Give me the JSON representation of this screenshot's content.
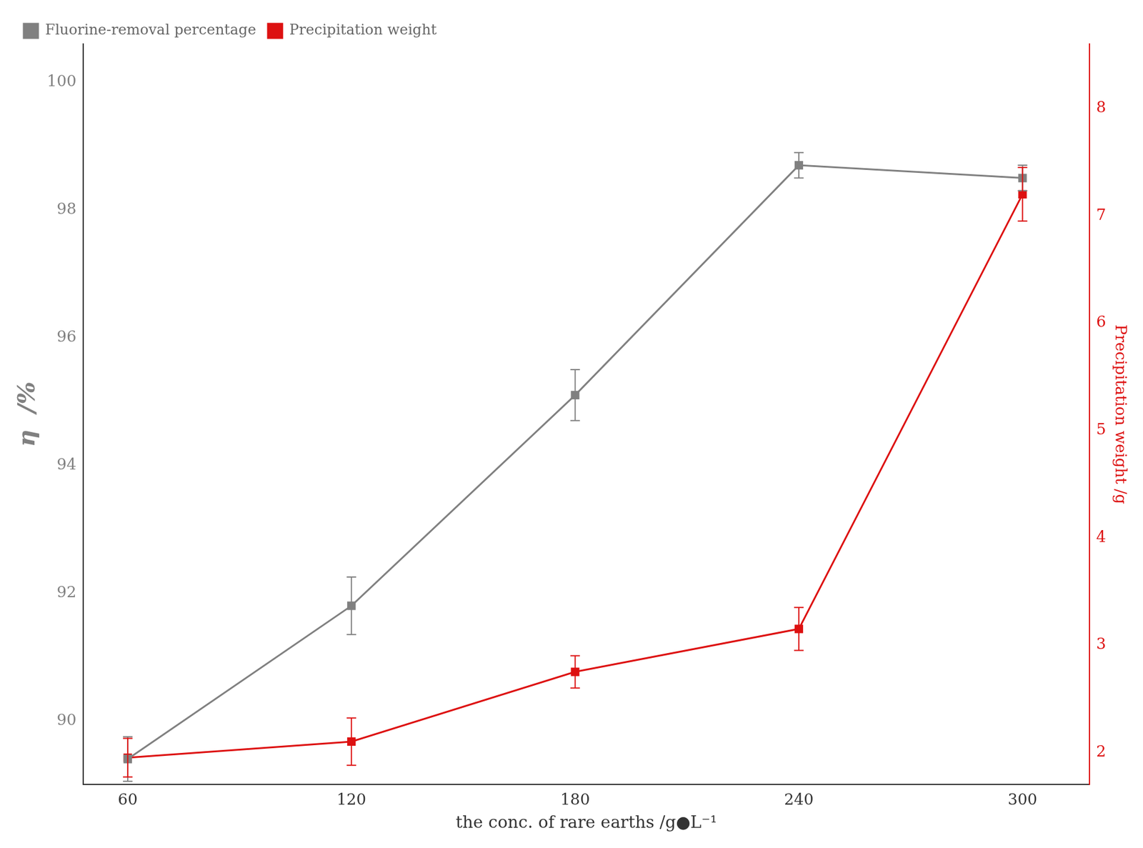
{
  "chart_data": {
    "type": "line",
    "xlabel": "the conc. of rare earths /g●L⁻¹",
    "ylabel": "η  /%",
    "y2label": "Precipitation weight /g",
    "x": [
      60,
      120,
      180,
      240,
      300
    ],
    "xlim": [
      48,
      318
    ],
    "xticks": [
      60,
      120,
      180,
      240,
      300
    ],
    "ylim": [
      89.0,
      100.6
    ],
    "yticks": [
      90,
      92,
      94,
      96,
      98,
      100
    ],
    "y2lim": [
      1.7,
      8.6
    ],
    "y2ticks": [
      2,
      3,
      4,
      5,
      6,
      7,
      8
    ],
    "grid": false,
    "legend": "upper left",
    "series": [
      {
        "name": "Fluorine-removal percentage",
        "color": "#808080",
        "marker": "square",
        "values": [
          89.4,
          91.8,
          95.1,
          98.7,
          98.5
        ],
        "yerr": [
          0.35,
          0.45,
          0.4,
          0.2,
          0.2
        ]
      },
      {
        "name": "Precipitation weight",
        "color": "#dd1111",
        "marker": "square",
        "axis": "y2",
        "values": [
          1.95,
          2.1,
          2.75,
          3.15,
          7.2
        ],
        "yerr": [
          0.18,
          0.22,
          0.15,
          0.2,
          0.25
        ]
      }
    ]
  }
}
